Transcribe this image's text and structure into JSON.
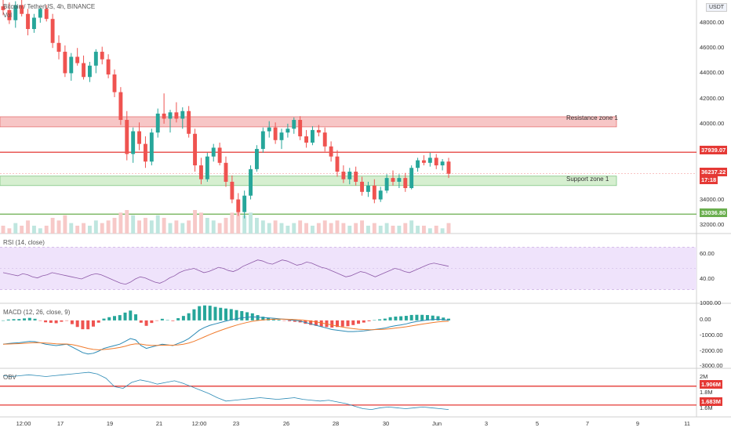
{
  "header": {
    "title": "Bitcoin / TetherUS, 4h, BINANCE",
    "volume_label": "Vol",
    "currency_badge": "USDT"
  },
  "zones": {
    "resistance": {
      "label": "Resistance zone 1",
      "low": 39950,
      "high": 40750,
      "color": "#f7c6c6"
    },
    "support": {
      "label": "Support zone 1",
      "low": 35300,
      "high": 36050,
      "color": "#d6efd0"
    }
  },
  "levels": {
    "resistance_line": {
      "value": "37939.07",
      "price": 37939,
      "color": "#e53935"
    },
    "support_line": {
      "value": "33036.80",
      "price": 33037,
      "color": "#6aae4e"
    },
    "current": {
      "value": "36237.22",
      "countdown": "17:18",
      "price": 36237,
      "color": "#e53935"
    }
  },
  "price_axis": [
    "48000.00",
    "46000.00",
    "44000.00",
    "42000.00",
    "40000.00",
    "34000.00",
    "32000.00"
  ],
  "price_axis_values": [
    48000,
    46000,
    44000,
    42000,
    40000,
    34000,
    32000
  ],
  "time_axis": [
    "12:00",
    "17",
    "19",
    "21",
    "12:00",
    "23",
    "26",
    "28",
    "30",
    "Jun",
    "3",
    "5",
    "7",
    "9",
    "11"
  ],
  "rsi": {
    "label": "RSI (14, close)",
    "axis": [
      "60.00",
      "40.00"
    ],
    "axis_values": [
      60,
      40
    ],
    "band": [
      30,
      70
    ],
    "values": [
      46,
      45,
      44,
      43,
      45,
      44,
      42,
      41,
      43,
      44,
      46,
      45,
      44,
      43,
      42,
      41,
      40,
      42,
      44,
      45,
      44,
      42,
      40,
      38,
      36,
      35,
      37,
      40,
      42,
      41,
      39,
      37,
      36,
      38,
      41,
      43,
      46,
      48,
      49,
      50,
      48,
      46,
      47,
      49,
      51,
      50,
      48,
      47,
      49,
      52,
      54,
      56,
      58,
      57,
      55,
      54,
      56,
      58,
      57,
      55,
      53,
      54,
      56,
      55,
      53,
      51,
      50,
      48,
      46,
      44,
      42,
      43,
      45,
      47,
      46,
      44,
      42,
      44,
      46,
      48,
      50,
      49,
      47,
      46,
      48,
      50,
      52,
      54,
      55,
      54,
      53,
      52
    ]
  },
  "macd": {
    "label": "MACD (12, 26, close, 9)",
    "axis": [
      "1000.00",
      "0.00",
      "-1000.00",
      "-2000.00",
      "-3000.00"
    ],
    "axis_values": [
      1000,
      0,
      -1000,
      -2000,
      -3000
    ],
    "macd_color": "#2b8ab5",
    "signal_color": "#f07b2d",
    "macd_values": [
      -1700,
      -1650,
      -1620,
      -1600,
      -1550,
      -1500,
      -1520,
      -1600,
      -1700,
      -1750,
      -1800,
      -1750,
      -1700,
      -1900,
      -2100,
      -2300,
      -2400,
      -2350,
      -2200,
      -2000,
      -1900,
      -1800,
      -1700,
      -1500,
      -1300,
      -1400,
      -1800,
      -2000,
      -1900,
      -1800,
      -1700,
      -1750,
      -1800,
      -1650,
      -1500,
      -1300,
      -1000,
      -700,
      -500,
      -350,
      -250,
      -150,
      -50,
      50,
      120,
      180,
      220,
      250,
      230,
      200,
      180,
      150,
      120,
      80,
      40,
      0,
      -50,
      -150,
      -250,
      -350,
      -450,
      -550,
      -650,
      -700,
      -750,
      -800,
      -800,
      -780,
      -750,
      -700,
      -650,
      -600,
      -550,
      -450,
      -380,
      -320,
      -250,
      -150,
      -80,
      -20,
      30,
      60,
      80,
      50,
      20
    ]
  },
  "obv": {
    "label": "OBV",
    "axis": [
      "2M",
      "1.8M",
      "1.6M"
    ],
    "axis_values": [
      2.0,
      1.8,
      1.6
    ],
    "tag_high": "1.906M",
    "tag_high_value": 1.906,
    "tag_low": "1.683M",
    "tag_low_value": 1.683,
    "color": "#e53935",
    "values": [
      2.03,
      2.02,
      2.03,
      2.04,
      2.03,
      2.02,
      2.03,
      2.04,
      2.05,
      2.06,
      2.07,
      2.05,
      2.0,
      1.9,
      1.88,
      1.95,
      1.98,
      1.96,
      1.93,
      1.95,
      1.97,
      1.94,
      1.9,
      1.86,
      1.82,
      1.77,
      1.73,
      1.74,
      1.75,
      1.76,
      1.77,
      1.76,
      1.75,
      1.76,
      1.77,
      1.75,
      1.74,
      1.73,
      1.74,
      1.72,
      1.7,
      1.67,
      1.64,
      1.63,
      1.65,
      1.66,
      1.65,
      1.64,
      1.65,
      1.66,
      1.65,
      1.64,
      1.63
    ]
  },
  "chart_data": {
    "type": "candlestick",
    "title": "Bitcoin / TetherUS, 4h, BINANCE",
    "ylim": [
      31500,
      50000
    ],
    "up_color": "#26a69a",
    "down_color": "#ef5350",
    "candles": [
      [
        49500,
        50200,
        48800,
        49200
      ],
      [
        49200,
        49800,
        48100,
        48400
      ],
      [
        48400,
        49900,
        47800,
        49600
      ],
      [
        49600,
        50100,
        48700,
        48900
      ],
      [
        48900,
        49300,
        47200,
        47700
      ],
      [
        47700,
        48900,
        47400,
        48600
      ],
      [
        48600,
        49400,
        48200,
        49300
      ],
      [
        49300,
        49600,
        48300,
        48500
      ],
      [
        48500,
        48900,
        46200,
        46600
      ],
      [
        46600,
        47200,
        45300,
        45900
      ],
      [
        45900,
        46400,
        43900,
        44200
      ],
      [
        44200,
        45800,
        43600,
        45500
      ],
      [
        45500,
        46200,
        44800,
        45000
      ],
      [
        45000,
        45600,
        43700,
        43900
      ],
      [
        43900,
        45100,
        43500,
        44800
      ],
      [
        44800,
        46100,
        44200,
        45900
      ],
      [
        45900,
        46300,
        44900,
        45300
      ],
      [
        45300,
        45700,
        43800,
        44100
      ],
      [
        44100,
        44500,
        42300,
        42700
      ],
      [
        42700,
        43100,
        40100,
        40500
      ],
      [
        40500,
        41200,
        37300,
        37800
      ],
      [
        37800,
        39900,
        37100,
        39600
      ],
      [
        39600,
        40300,
        38100,
        38600
      ],
      [
        38600,
        39200,
        36700,
        37200
      ],
      [
        37200,
        39800,
        36900,
        39500
      ],
      [
        39500,
        41400,
        39100,
        41000
      ],
      [
        41000,
        42600,
        40200,
        40600
      ],
      [
        40600,
        41300,
        39500,
        41100
      ],
      [
        41100,
        41900,
        40300,
        40600
      ],
      [
        40600,
        41500,
        39800,
        41200
      ],
      [
        41200,
        41600,
        39100,
        39400
      ],
      [
        39400,
        39800,
        36400,
        36900
      ],
      [
        36900,
        37500,
        35400,
        35800
      ],
      [
        35800,
        37900,
        35600,
        37600
      ],
      [
        37600,
        38600,
        37200,
        38300
      ],
      [
        38300,
        38700,
        36900,
        37100
      ],
      [
        37100,
        37600,
        35200,
        35600
      ],
      [
        35600,
        36100,
        33900,
        34200
      ],
      [
        34200,
        34700,
        32900,
        33200
      ],
      [
        33200,
        34900,
        32700,
        34500
      ],
      [
        34500,
        36900,
        34200,
        36600
      ],
      [
        36600,
        38500,
        36400,
        38200
      ],
      [
        38200,
        39900,
        37900,
        39600
      ],
      [
        39600,
        40400,
        39100,
        39900
      ],
      [
        39900,
        40300,
        38600,
        38900
      ],
      [
        38900,
        39800,
        38200,
        39500
      ],
      [
        39500,
        40200,
        39100,
        39800
      ],
      [
        39800,
        40700,
        39400,
        40500
      ],
      [
        40500,
        40800,
        38900,
        39200
      ],
      [
        39200,
        39700,
        38300,
        38700
      ],
      [
        38700,
        40000,
        38500,
        39700
      ],
      [
        39700,
        40100,
        39200,
        39500
      ],
      [
        39500,
        39900,
        38000,
        38400
      ],
      [
        38400,
        38800,
        37200,
        37600
      ],
      [
        37600,
        38100,
        36000,
        36400
      ],
      [
        36400,
        36900,
        35500,
        35800
      ],
      [
        35800,
        36700,
        35400,
        36400
      ],
      [
        36400,
        36800,
        35300,
        35600
      ],
      [
        35600,
        36000,
        34500,
        34800
      ],
      [
        34800,
        35600,
        34400,
        35300
      ],
      [
        35300,
        35800,
        33900,
        34200
      ],
      [
        34200,
        35200,
        34000,
        34900
      ],
      [
        34900,
        36200,
        34700,
        35900
      ],
      [
        35900,
        36500,
        35300,
        35600
      ],
      [
        35600,
        36200,
        35100,
        35900
      ],
      [
        35900,
        36300,
        34800,
        35100
      ],
      [
        35100,
        36900,
        35000,
        36700
      ],
      [
        36700,
        37500,
        36400,
        37300
      ],
      [
        37300,
        37700,
        36900,
        37100
      ],
      [
        37100,
        37900,
        36800,
        37500
      ],
      [
        37500,
        37800,
        36600,
        36900
      ],
      [
        36900,
        37400,
        36500,
        37200
      ],
      [
        37200,
        37500,
        35900,
        36237
      ]
    ],
    "volume": [
      3,
      2,
      4,
      3,
      5,
      3,
      2,
      3,
      6,
      5,
      7,
      4,
      3,
      4,
      3,
      5,
      4,
      5,
      6,
      8,
      9,
      7,
      5,
      6,
      5,
      7,
      6,
      4,
      5,
      4,
      5,
      9,
      8,
      6,
      5,
      4,
      6,
      8,
      9,
      7,
      8,
      6,
      5,
      4,
      5,
      4,
      3,
      4,
      5,
      4,
      3,
      4,
      5,
      4,
      5,
      4,
      3,
      4,
      5,
      3,
      4,
      3,
      4,
      3,
      3,
      4,
      5,
      3,
      3,
      2,
      3,
      2,
      4
    ]
  }
}
